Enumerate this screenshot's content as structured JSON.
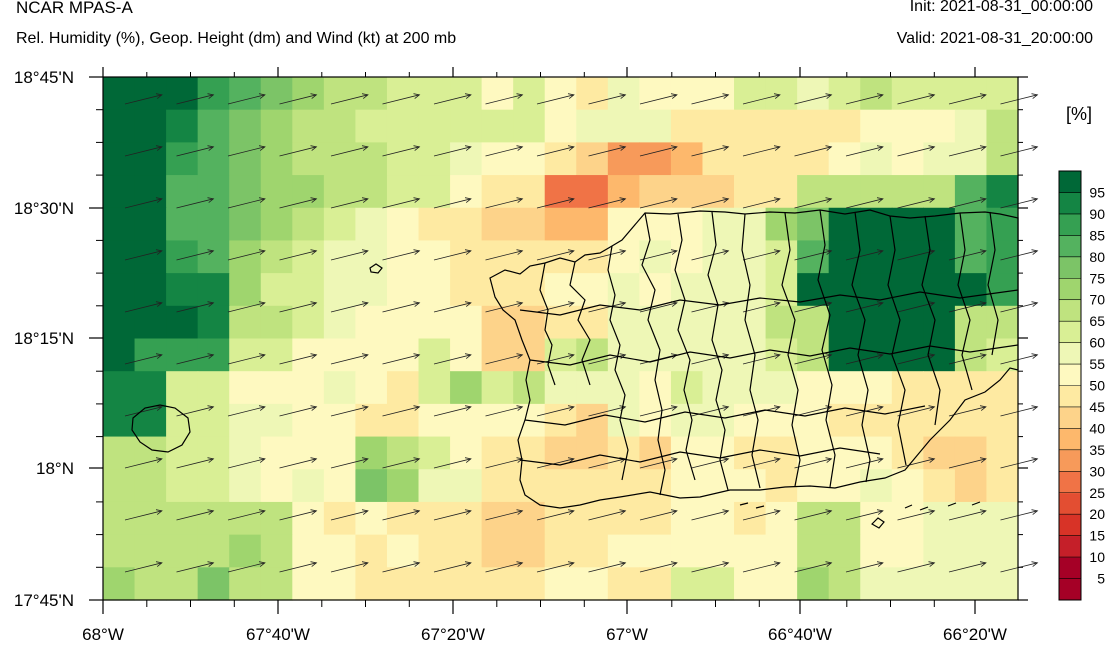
{
  "header": {
    "title": "NCAR MPAS-A",
    "subtitle": "Rel. Humidity (%), Geop. Height (dm) and Wind (kt) at 200 mb",
    "init": "Init: 2021-08-31_00:00:00",
    "valid": "Valid: 2021-08-31_20:00:00"
  },
  "colorbar": {
    "unit_label": "[%]",
    "levels": [
      "5",
      "10",
      "15",
      "20",
      "25",
      "30",
      "35",
      "40",
      "45",
      "50",
      "55",
      "60",
      "65",
      "70",
      "75",
      "80",
      "85",
      "90",
      "95"
    ],
    "colors": [
      "#a50026",
      "#c51f29",
      "#d83327",
      "#e34e32",
      "#f07346",
      "#f79a5a",
      "#fdb86c",
      "#fdd38a",
      "#feeaa2",
      "#fef9c0",
      "#eef7b6",
      "#d9ef95",
      "#bfe37f",
      "#9fd56e",
      "#7cc467",
      "#54b25f",
      "#35a052",
      "#148544",
      "#006837"
    ]
  },
  "chart_data": {
    "type": "heatmap",
    "title": "NCAR MPAS-A",
    "subtitle": "Rel. Humidity (%), Geop. Height (dm) and Wind (kt) at 200 mb",
    "x_ticks": [
      "68°W",
      "67°40'W",
      "67°20'W",
      "67°W",
      "66°40'W",
      "66°20'W"
    ],
    "y_ticks": [
      "18°45'N",
      "18°30'N",
      "18°15'N",
      "18°N",
      "17°45'N"
    ],
    "grid_rows_north_to_south": [
      [
        97,
        97,
        90,
        82,
        75,
        70,
        65,
        60,
        60,
        58,
        55,
        55,
        48,
        55,
        45,
        40,
        50,
        45,
        45,
        45,
        55,
        55,
        50,
        55,
        60,
        55,
        55,
        55,
        55
      ],
      [
        97,
        97,
        85,
        75,
        70,
        65,
        60,
        60,
        55,
        55,
        55,
        55,
        55,
        55,
        48,
        50,
        50,
        50,
        42,
        42,
        42,
        40,
        40,
        42,
        45,
        45,
        45,
        50,
        60
      ],
      [
        97,
        90,
        80,
        75,
        70,
        65,
        60,
        60,
        60,
        55,
        55,
        50,
        48,
        45,
        40,
        35,
        25,
        25,
        32,
        40,
        40,
        40,
        40,
        45,
        50,
        48,
        50,
        50,
        60
      ],
      [
        97,
        90,
        78,
        75,
        70,
        65,
        65,
        60,
        60,
        55,
        55,
        48,
        42,
        40,
        20,
        20,
        32,
        35,
        35,
        38,
        42,
        40,
        60,
        60,
        60,
        60,
        60,
        75,
        85
      ],
      [
        95,
        95,
        78,
        78,
        70,
        65,
        60,
        55,
        50,
        45,
        42,
        42,
        38,
        35,
        30,
        30,
        48,
        48,
        48,
        50,
        50,
        65,
        70,
        97,
        97,
        97,
        97,
        75,
        80
      ],
      [
        97,
        95,
        80,
        75,
        65,
        60,
        55,
        50,
        50,
        48,
        45,
        40,
        40,
        40,
        42,
        42,
        48,
        50,
        48,
        50,
        50,
        55,
        75,
        97,
        97,
        97,
        97,
        75,
        80
      ],
      [
        97,
        95,
        88,
        85,
        65,
        58,
        55,
        52,
        52,
        48,
        45,
        40,
        40,
        40,
        45,
        45,
        50,
        48,
        50,
        50,
        50,
        55,
        97,
        97,
        97,
        97,
        97,
        97,
        80
      ],
      [
        97,
        95,
        90,
        88,
        62,
        60,
        55,
        50,
        48,
        45,
        48,
        45,
        38,
        38,
        40,
        40,
        52,
        50,
        52,
        52,
        52,
        60,
        60,
        95,
        95,
        95,
        95,
        60,
        62
      ],
      [
        97,
        80,
        80,
        80,
        58,
        55,
        48,
        48,
        45,
        45,
        55,
        45,
        35,
        35,
        55,
        60,
        50,
        52,
        50,
        50,
        50,
        55,
        60,
        95,
        95,
        95,
        95,
        60,
        58
      ],
      [
        88,
        88,
        55,
        55,
        48,
        45,
        48,
        50,
        45,
        40,
        58,
        65,
        55,
        60,
        50,
        50,
        50,
        48,
        55,
        50,
        50,
        50,
        45,
        48,
        48,
        42,
        40,
        40,
        40
      ],
      [
        88,
        85,
        55,
        55,
        50,
        50,
        48,
        48,
        40,
        40,
        48,
        48,
        45,
        45,
        42,
        38,
        50,
        45,
        50,
        50,
        45,
        45,
        45,
        40,
        40,
        40,
        40,
        40,
        42
      ],
      [
        60,
        60,
        55,
        55,
        52,
        48,
        45,
        45,
        65,
        60,
        55,
        48,
        40,
        40,
        38,
        38,
        40,
        38,
        45,
        45,
        42,
        40,
        45,
        45,
        45,
        40,
        38,
        38,
        42
      ],
      [
        60,
        60,
        55,
        55,
        50,
        48,
        50,
        48,
        70,
        65,
        50,
        50,
        42,
        42,
        40,
        40,
        42,
        42,
        45,
        45,
        45,
        42,
        45,
        48,
        50,
        45,
        42,
        38,
        42
      ],
      [
        62,
        62,
        60,
        60,
        60,
        60,
        48,
        42,
        48,
        42,
        42,
        42,
        35,
        35,
        40,
        40,
        42,
        42,
        45,
        45,
        42,
        45,
        60,
        60,
        45,
        45,
        50,
        50,
        50
      ],
      [
        62,
        62,
        60,
        60,
        65,
        60,
        45,
        45,
        40,
        45,
        40,
        40,
        35,
        35,
        40,
        40,
        45,
        45,
        45,
        45,
        48,
        48,
        62,
        62,
        48,
        48,
        50,
        50,
        50
      ],
      [
        65,
        62,
        62,
        72,
        62,
        60,
        48,
        48,
        40,
        42,
        40,
        40,
        42,
        42,
        45,
        45,
        42,
        42,
        55,
        55,
        48,
        48,
        65,
        60,
        50,
        52,
        50,
        50,
        50
      ]
    ]
  }
}
